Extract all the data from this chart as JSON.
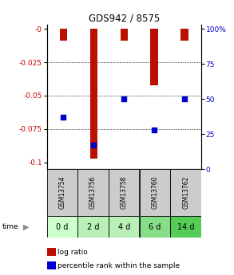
{
  "title": "GDS942 / 8575",
  "samples": [
    "GSM13754",
    "GSM13756",
    "GSM13758",
    "GSM13760",
    "GSM13762"
  ],
  "time_labels": [
    "0 d",
    "2 d",
    "4 d",
    "6 d",
    "14 d"
  ],
  "time_bg_colors": [
    "#ccffcc",
    "#b8f0b8",
    "#b8f0b8",
    "#88dd88",
    "#55cc55"
  ],
  "log_ratio_values": [
    -0.009,
    -0.097,
    -0.009,
    -0.042,
    -0.009
  ],
  "percentile_values": [
    37,
    17,
    50,
    28,
    50
  ],
  "ylim_left": [
    -0.105,
    0.003
  ],
  "ylim_right": [
    -3.15,
    100
  ],
  "yticks_left": [
    0.0,
    -0.025,
    -0.05,
    -0.075,
    -0.1
  ],
  "yticks_right": [
    100,
    75,
    50,
    25,
    0
  ],
  "left_axis_color": "#cc0000",
  "right_axis_color": "#0000cc",
  "bar_color": "#bb1100",
  "dot_color": "#0000cc",
  "sample_box_color": "#cccccc",
  "legend_bar_label": "log ratio",
  "legend_dot_label": "percentile rank within the sample",
  "bar_width": 0.25
}
